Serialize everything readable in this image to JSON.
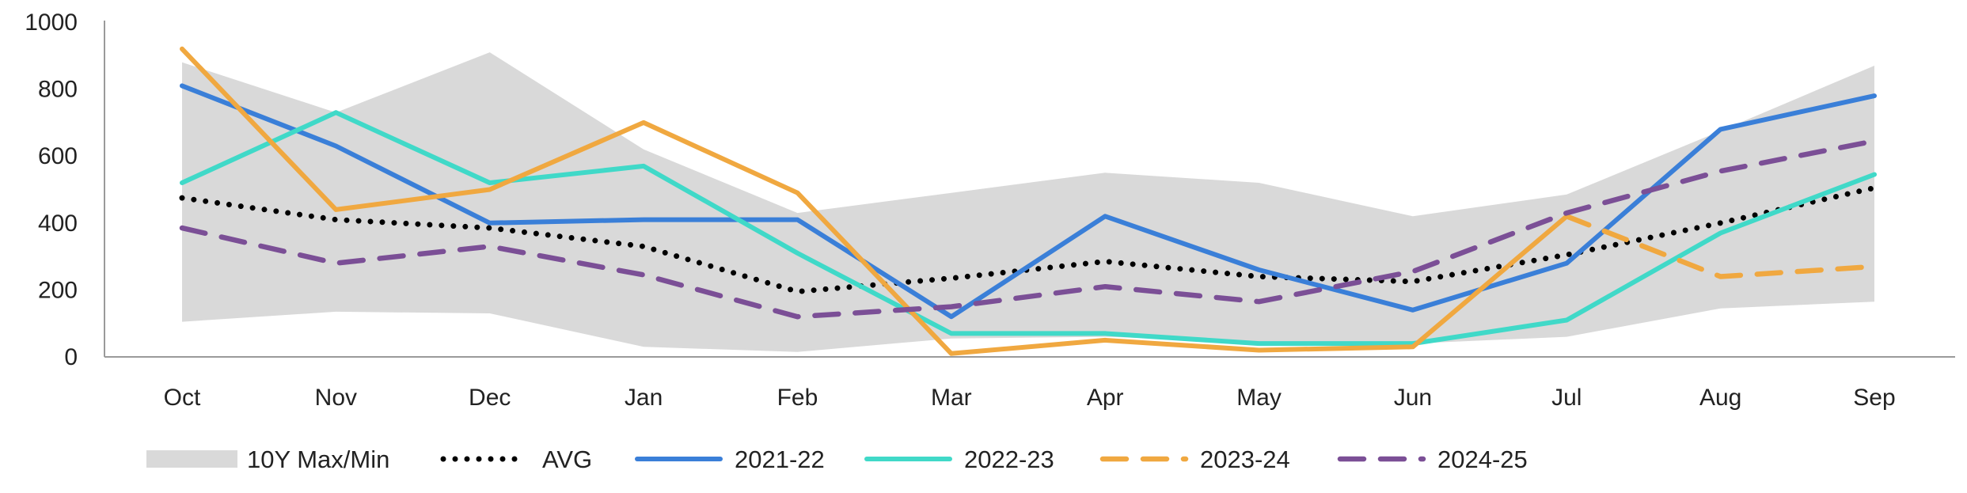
{
  "chart_data": {
    "type": "line",
    "title": "",
    "xlabel": "",
    "ylabel": "",
    "ylim": [
      0,
      1000
    ],
    "yticks": [
      0,
      200,
      400,
      600,
      800,
      1000
    ],
    "categories": [
      "Oct",
      "Nov",
      "Dec",
      "Jan",
      "Feb",
      "Mar",
      "Apr",
      "May",
      "Jun",
      "Jul",
      "Aug",
      "Sep"
    ],
    "band": {
      "name": "10Y Max/Min",
      "color": "#d9d9d9",
      "max": [
        880,
        730,
        910,
        620,
        430,
        490,
        550,
        520,
        420,
        485,
        675,
        870
      ],
      "min": [
        105,
        135,
        130,
        30,
        15,
        55,
        60,
        45,
        40,
        60,
        145,
        165
      ]
    },
    "series": [
      {
        "name": "AVG",
        "color": "#000000",
        "style": "dotted",
        "values": [
          475,
          410,
          385,
          330,
          195,
          235,
          285,
          240,
          225,
          305,
          400,
          505
        ]
      },
      {
        "name": "2021-22",
        "color": "#3a7fd8",
        "style": "solid",
        "values": [
          810,
          630,
          400,
          410,
          410,
          120,
          420,
          260,
          140,
          280,
          680,
          780
        ]
      },
      {
        "name": "2022-23",
        "color": "#40d9c8",
        "style": "solid",
        "values": [
          520,
          730,
          520,
          570,
          310,
          70,
          70,
          40,
          40,
          110,
          370,
          545
        ]
      },
      {
        "name": "2023-24",
        "color": "#f0a840",
        "style": "solid-then-dashed",
        "dash_from_index": 9,
        "values": [
          920,
          440,
          500,
          700,
          490,
          10,
          50,
          20,
          30,
          420,
          240,
          270
        ]
      },
      {
        "name": "2024-25",
        "color": "#7b4f96",
        "style": "dashed",
        "values": [
          385,
          280,
          330,
          245,
          120,
          150,
          210,
          165,
          255,
          430,
          555,
          645
        ]
      }
    ],
    "legend": {
      "placement": "bottom",
      "items": [
        "10Y Max/Min",
        "AVG",
        "2021-22",
        "2022-23",
        "2023-24",
        "2024-25"
      ]
    },
    "grid": false
  }
}
